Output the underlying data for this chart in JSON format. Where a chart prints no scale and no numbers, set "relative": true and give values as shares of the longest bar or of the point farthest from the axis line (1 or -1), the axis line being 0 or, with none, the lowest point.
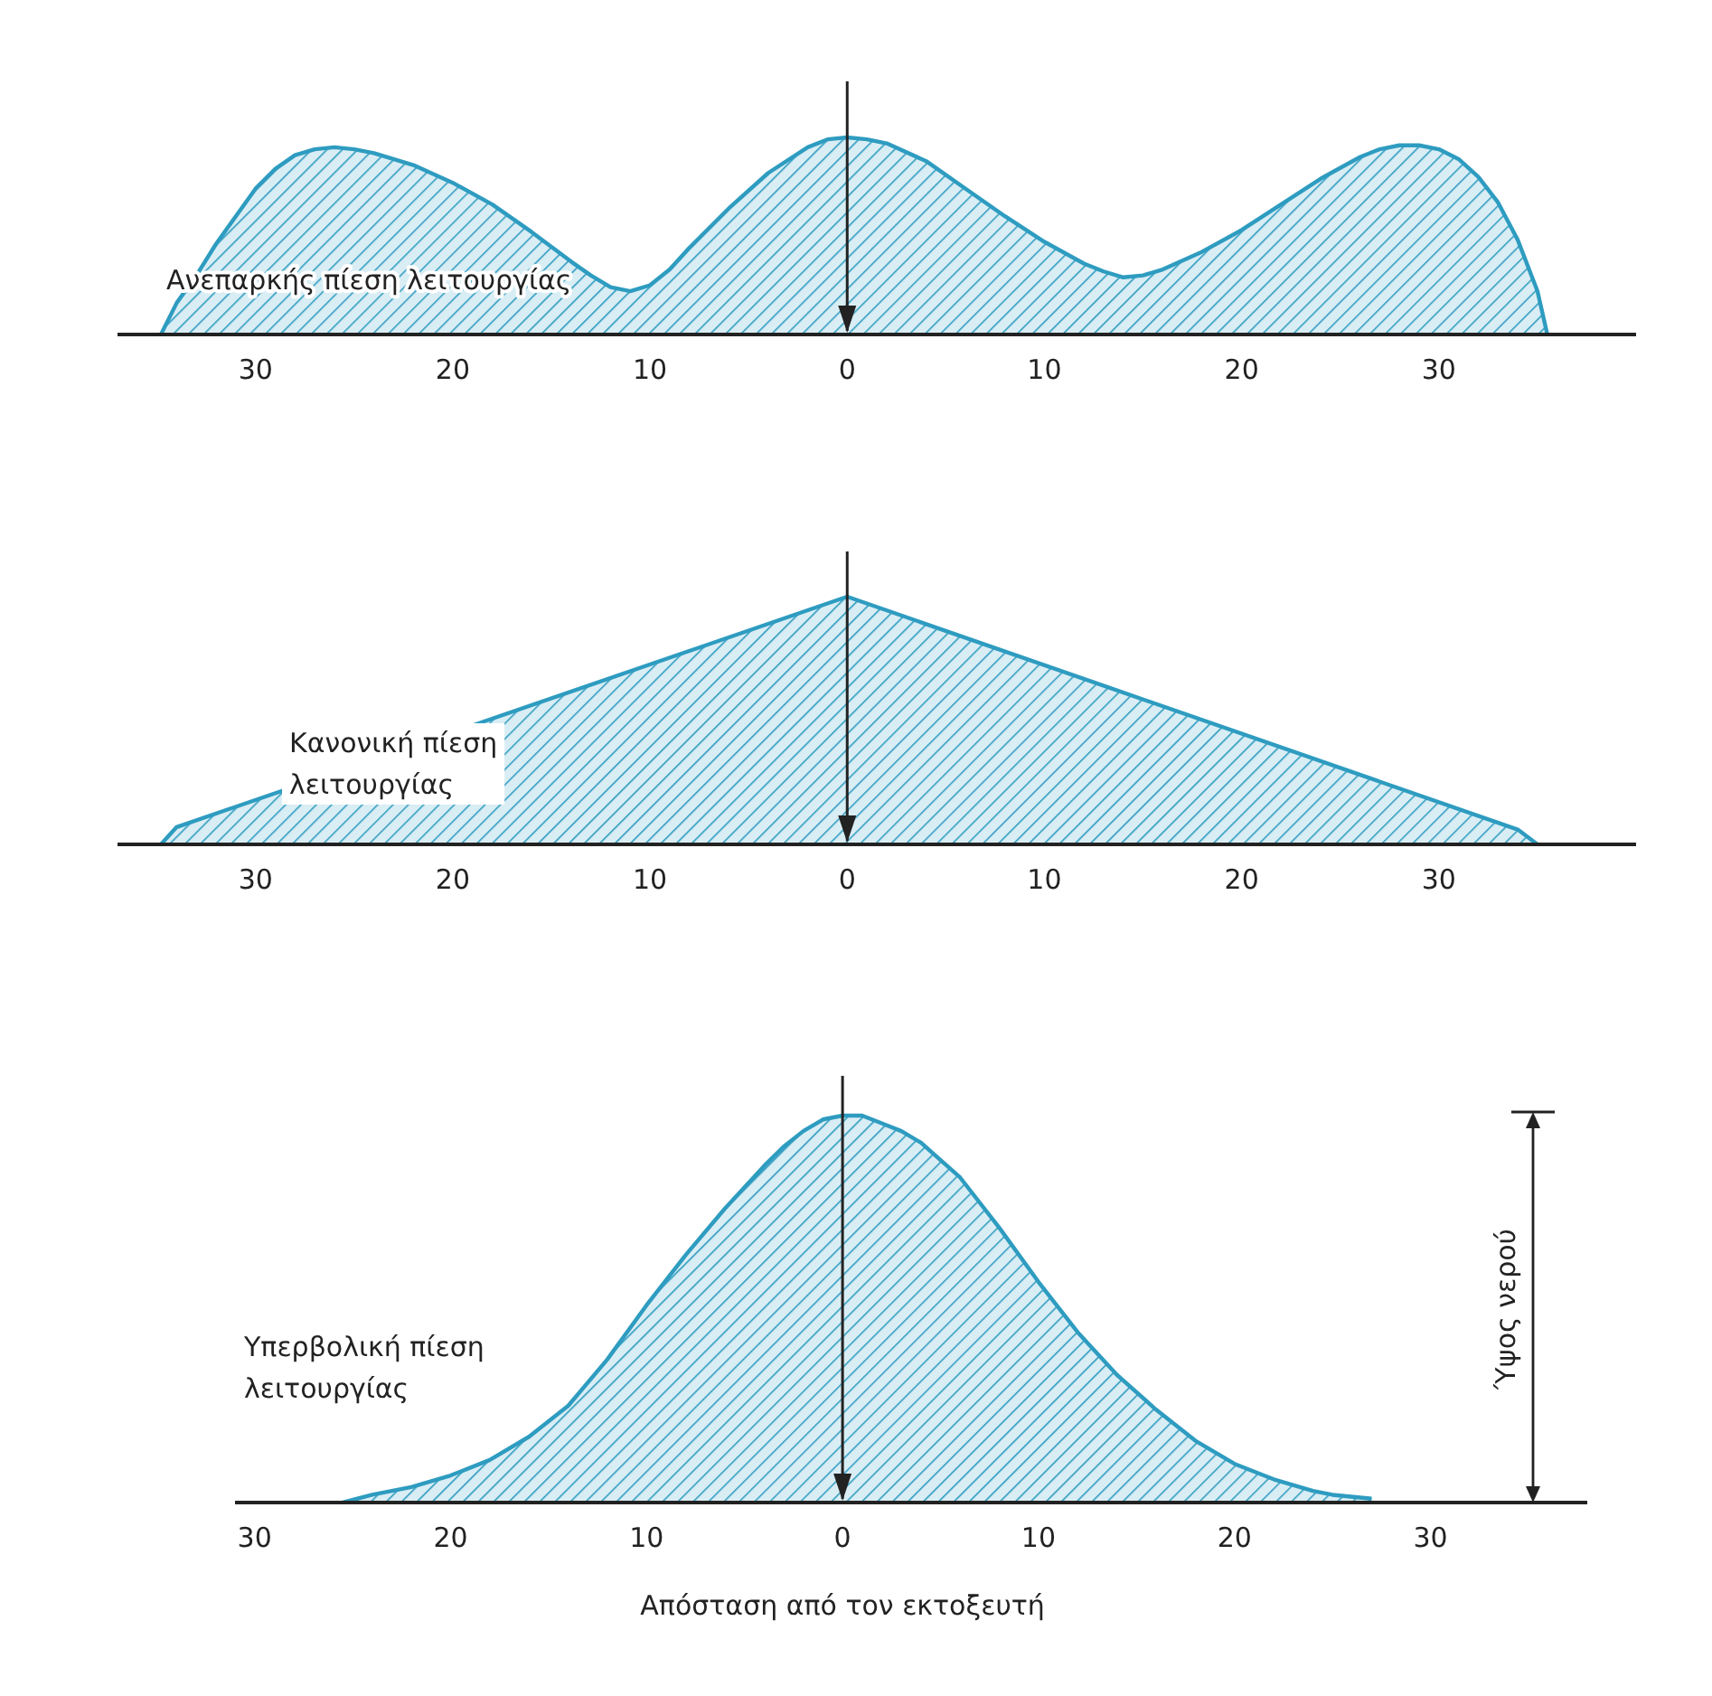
{
  "chart_data": [
    {
      "type": "area",
      "relative": true,
      "x": [
        -34.8,
        -34,
        -33,
        -32,
        -31,
        -30,
        -29,
        -28,
        -27,
        -26,
        -25,
        -24,
        -22,
        -20,
        -18,
        -16,
        -14,
        -13,
        -12,
        -11,
        -10,
        -9,
        -8,
        -6,
        -4,
        -2,
        -1,
        0,
        1,
        2,
        4,
        6,
        8,
        10,
        12,
        13,
        14,
        15,
        16,
        18,
        20,
        22,
        24,
        26,
        27,
        28,
        29,
        30,
        31,
        32,
        33,
        34,
        35,
        35.5
      ],
      "series": [
        {
          "color": "#2e9cc0",
          "values": [
            0,
            0.16,
            0.3,
            0.46,
            0.6,
            0.74,
            0.84,
            0.91,
            0.94,
            0.95,
            0.94,
            0.92,
            0.86,
            0.77,
            0.66,
            0.52,
            0.37,
            0.3,
            0.24,
            0.22,
            0.25,
            0.33,
            0.44,
            0.64,
            0.82,
            0.95,
            0.99,
            1,
            0.99,
            0.97,
            0.88,
            0.74,
            0.6,
            0.47,
            0.36,
            0.32,
            0.29,
            0.3,
            0.33,
            0.42,
            0.53,
            0.66,
            0.79,
            0.9,
            0.94,
            0.96,
            0.96,
            0.94,
            0.89,
            0.8,
            0.67,
            0.48,
            0.22,
            0
          ]
        }
      ],
      "xlim": [
        -37,
        40
      ],
      "xticks": [
        {
          "value": -30,
          "label": "30"
        },
        {
          "value": -20,
          "label": "20"
        },
        {
          "value": -10,
          "label": "10"
        },
        0,
        10,
        20,
        30
      ],
      "ref_lines": [
        {
          "axis": "x",
          "value": 0
        }
      ],
      "annotations": [
        "Ανεπαρκής πίεση λειτουργίας"
      ]
    },
    {
      "type": "area",
      "relative": true,
      "x": [
        -34.8,
        -34,
        0,
        34,
        35
      ],
      "series": [
        {
          "color": "#2e9cc0",
          "values": [
            0,
            0.07,
            1,
            0.06,
            0
          ]
        }
      ],
      "xlim": [
        -37,
        40
      ],
      "xticks": [
        {
          "value": -30,
          "label": "30"
        },
        {
          "value": -20,
          "label": "20"
        },
        {
          "value": -10,
          "label": "10"
        },
        0,
        10,
        20,
        30
      ],
      "ref_lines": [
        {
          "axis": "x",
          "value": 0
        }
      ],
      "annotations": [
        "Κανονική πίεση\nλειτουργίας"
      ]
    },
    {
      "type": "area",
      "relative": true,
      "x": [
        -25.5,
        -24,
        -22,
        -20,
        -18,
        -16,
        -14,
        -12,
        -10,
        -8,
        -6,
        -4,
        -3,
        -2,
        -1,
        0,
        0.6,
        1,
        2,
        3,
        4,
        6,
        8,
        10,
        12,
        14,
        16,
        18,
        20,
        22,
        24,
        25,
        27
      ],
      "series": [
        {
          "color": "#2e9cc0",
          "values": [
            0,
            0.02,
            0.04,
            0.07,
            0.11,
            0.17,
            0.25,
            0.37,
            0.51,
            0.64,
            0.76,
            0.87,
            0.92,
            0.96,
            0.99,
            1,
            1,
            1,
            0.98,
            0.96,
            0.93,
            0.84,
            0.71,
            0.57,
            0.44,
            0.33,
            0.24,
            0.16,
            0.1,
            0.06,
            0.03,
            0.02,
            0.01
          ]
        }
      ],
      "xlim": [
        -31,
        38
      ],
      "xticks": [
        {
          "value": -30,
          "label": "30"
        },
        {
          "value": -20,
          "label": "20"
        },
        {
          "value": -10,
          "label": "10"
        },
        0,
        10,
        20,
        30
      ],
      "xlabel": "Απόσταση από τον εκτοξευτή",
      "ref_lines": [
        {
          "axis": "x",
          "value": 0
        }
      ],
      "annotations": [
        "Υπερβολική πίεση\nλειτουργίας",
        "Ύψος νερού"
      ]
    }
  ]
}
